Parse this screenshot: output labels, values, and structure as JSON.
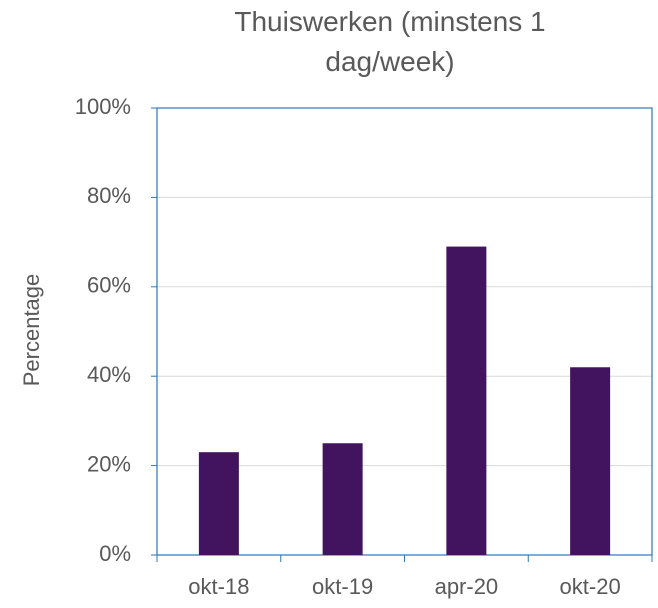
{
  "chart_data": {
    "type": "bar",
    "title": "Thuiswerken (minstens 1 dag/week)",
    "y_label": "Percentage",
    "categories": [
      "okt-18",
      "okt-19",
      "apr-20",
      "okt-20"
    ],
    "values": [
      23,
      25,
      69,
      42
    ],
    "color": "#42145f",
    "ylim": [
      0,
      100
    ],
    "yticks": [
      {
        "value": 0,
        "label": "0%"
      },
      {
        "value": 20,
        "label": "20%"
      },
      {
        "value": 40,
        "label": "40%"
      },
      {
        "value": 60,
        "label": "60%"
      },
      {
        "value": 80,
        "label": "80%"
      },
      {
        "value": 100,
        "label": "100%"
      }
    ],
    "grid": true
  }
}
